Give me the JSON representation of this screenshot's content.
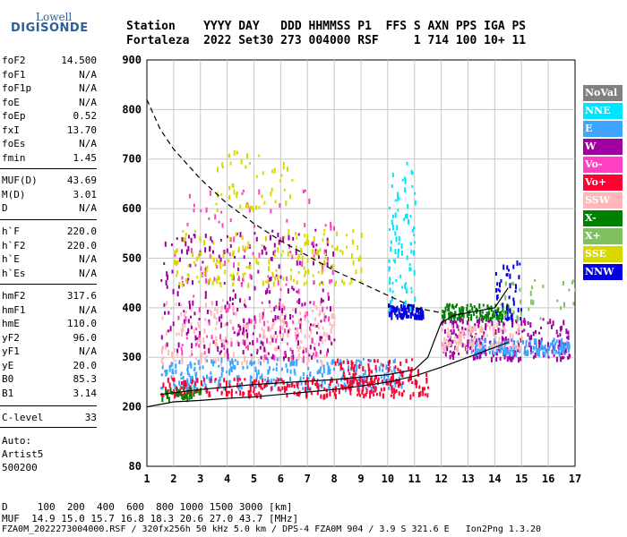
{
  "logo": {
    "line1": "Lowell",
    "line2": "DIGISONDE"
  },
  "header": {
    "row1": "Station    YYYY DAY   DDD HHMMSS P1  FFS S AXN PPS IGA PS",
    "row2": "Fortaleza  2022 Set30 273 004000 RSF     1 714 100 10+ 11"
  },
  "params_group1": [
    {
      "name": "foF2",
      "value": "14.500"
    },
    {
      "name": "foF1",
      "value": "N/A"
    },
    {
      "name": "foF1p",
      "value": "N/A"
    },
    {
      "name": "foE",
      "value": "N/A"
    },
    {
      "name": "foEp",
      "value": "0.52"
    },
    {
      "name": "fxI",
      "value": "13.70"
    },
    {
      "name": "foEs",
      "value": "N/A"
    },
    {
      "name": "fmin",
      "value": "1.45"
    }
  ],
  "params_group2": [
    {
      "name": "MUF(D)",
      "value": "43.69"
    },
    {
      "name": "M(D)",
      "value": "3.01"
    },
    {
      "name": "D",
      "value": "N/A"
    }
  ],
  "params_group3": [
    {
      "name": "h`F",
      "value": "220.0"
    },
    {
      "name": "h`F2",
      "value": "220.0"
    },
    {
      "name": "h`E",
      "value": "N/A"
    },
    {
      "name": "h`Es",
      "value": "N/A"
    }
  ],
  "params_group4": [
    {
      "name": "hmF2",
      "value": "317.6"
    },
    {
      "name": "hmF1",
      "value": "N/A"
    },
    {
      "name": "hmE",
      "value": "110.0"
    },
    {
      "name": "yF2",
      "value": "96.0"
    },
    {
      "name": "yF1",
      "value": "N/A"
    },
    {
      "name": "yE",
      "value": "20.0"
    },
    {
      "name": "B0",
      "value": "85.3"
    },
    {
      "name": "B1",
      "value": "3.14"
    }
  ],
  "params_group5": [
    {
      "name": "C-level",
      "value": "33"
    }
  ],
  "auto": {
    "line1": "Auto:",
    "line2": "Artist5",
    "line3": "500200"
  },
  "legend": [
    {
      "label": "NoVal",
      "color": "#808080"
    },
    {
      "label": "NNE",
      "color": "#00e5ff"
    },
    {
      "label": "E",
      "color": "#3da5ff"
    },
    {
      "label": "W",
      "color": "#a000a0"
    },
    {
      "label": "Vo-",
      "color": "#ff40c0"
    },
    {
      "label": "Vo+",
      "color": "#ff0030"
    },
    {
      "label": "SSW",
      "color": "#ffb8b8"
    },
    {
      "label": "X-",
      "color": "#008000"
    },
    {
      "label": "X+",
      "color": "#80c060"
    },
    {
      "label": "SSE",
      "color": "#d8d800"
    },
    {
      "label": "NNW",
      "color": "#0000e0"
    }
  ],
  "footer": {
    "line1": "D     100  200  400  600  800 1000 1500 3000 [km]",
    "line2": "MUF  14.9 15.0 15.7 16.8 18.3 20.6 27.0 43.7 [MHz]",
    "line3": "FZA0M_2022273004000.RSF / 320fx256h 50 kHz 5.0 km / DPS-4 FZA0M 904 / 3.9 S 321.6 E   Ion2Png 1.3.20"
  },
  "chart_data": {
    "type": "scatter",
    "title": "",
    "xlabel": "",
    "ylabel": "",
    "x_unit": "MHz",
    "y_unit": "km",
    "xlim": [
      1,
      17
    ],
    "ylim": [
      80,
      900
    ],
    "x_ticks": [
      "1",
      "2",
      "3",
      "4",
      "5",
      "6",
      "7",
      "8",
      "9",
      "10",
      "11",
      "12",
      "13",
      "14",
      "15",
      "16",
      "17"
    ],
    "y_ticks": [
      "80",
      "200",
      "300",
      "400",
      "500",
      "600",
      "700",
      "800",
      "900"
    ],
    "grid": true,
    "legend_placement": "right",
    "traces": [
      {
        "name": "dashed-muf",
        "style": "dashed",
        "points": [
          [
            1,
            820
          ],
          [
            1.5,
            760
          ],
          [
            2,
            720
          ],
          [
            3,
            660
          ],
          [
            4,
            610
          ],
          [
            5,
            570
          ],
          [
            6,
            535
          ],
          [
            7,
            505
          ],
          [
            8,
            475
          ],
          [
            9,
            450
          ],
          [
            10,
            425
          ],
          [
            11,
            400
          ],
          [
            12,
            390
          ]
        ]
      },
      {
        "name": "virtual-height-profile",
        "style": "solid",
        "points": [
          [
            1,
            200
          ],
          [
            2,
            210
          ],
          [
            3,
            213
          ],
          [
            4,
            217
          ],
          [
            5,
            220
          ],
          [
            6,
            225
          ],
          [
            7,
            230
          ],
          [
            8,
            235
          ],
          [
            9,
            242
          ],
          [
            10,
            250
          ],
          [
            11,
            262
          ],
          [
            12,
            280
          ],
          [
            13,
            300
          ],
          [
            14,
            320
          ],
          [
            14.5,
            330
          ]
        ]
      },
      {
        "name": "trace-upper",
        "style": "solid",
        "points": [
          [
            1.5,
            225
          ],
          [
            3,
            235
          ],
          [
            5,
            245
          ],
          [
            8,
            255
          ],
          [
            10,
            265
          ],
          [
            11,
            275
          ],
          [
            11.5,
            300
          ],
          [
            12,
            370
          ],
          [
            12.5,
            385
          ],
          [
            13,
            390
          ],
          [
            14,
            400
          ],
          [
            14.5,
            440
          ]
        ]
      }
    ],
    "echo_clusters": [
      {
        "color": "SSW",
        "x": [
          1.5,
          8
        ],
        "y": [
          290,
          420
        ],
        "density": 260
      },
      {
        "color": "E",
        "x": [
          1.5,
          10.5
        ],
        "y": [
          240,
          300
        ],
        "density": 320
      },
      {
        "color": "Vo+",
        "x": [
          1.5,
          11.5
        ],
        "y": [
          225,
          260
        ],
        "density": 260
      },
      {
        "color": "W",
        "x": [
          1.5,
          8
        ],
        "y": [
          300,
          560
        ],
        "density": 260
      },
      {
        "color": "Vo-",
        "x": [
          2,
          8
        ],
        "y": [
          300,
          640
        ],
        "density": 160
      },
      {
        "color": "SSE",
        "x": [
          2,
          9
        ],
        "y": [
          450,
          560
        ],
        "density": 180
      },
      {
        "color": "SSE",
        "x": [
          3.5,
          6.5
        ],
        "y": [
          600,
          720
        ],
        "density": 50
      },
      {
        "color": "NNW",
        "x": [
          10,
          11.3
        ],
        "y": [
          385,
          410
        ],
        "density": 100
      },
      {
        "color": "X-",
        "x": [
          12,
          14.5
        ],
        "y": [
          380,
          410
        ],
        "density": 120
      },
      {
        "color": "NNE",
        "x": [
          10,
          11
        ],
        "y": [
          400,
          700
        ],
        "density": 80
      },
      {
        "color": "W",
        "x": [
          12,
          16.8
        ],
        "y": [
          300,
          380
        ],
        "density": 240
      },
      {
        "color": "E",
        "x": [
          13,
          16.8
        ],
        "y": [
          310,
          340
        ],
        "density": 160
      },
      {
        "color": "SSW",
        "x": [
          12,
          15
        ],
        "y": [
          320,
          370
        ],
        "density": 120
      },
      {
        "color": "NNW",
        "x": [
          14,
          15
        ],
        "y": [
          380,
          500
        ],
        "density": 40
      },
      {
        "color": "X+",
        "x": [
          14,
          17
        ],
        "y": [
          380,
          460
        ],
        "density": 30
      },
      {
        "color": "Vo+",
        "x": [
          8,
          11.5
        ],
        "y": [
          250,
          300
        ],
        "density": 80
      },
      {
        "color": "X-",
        "x": [
          1.5,
          3
        ],
        "y": [
          220,
          240
        ],
        "density": 40
      }
    ]
  }
}
